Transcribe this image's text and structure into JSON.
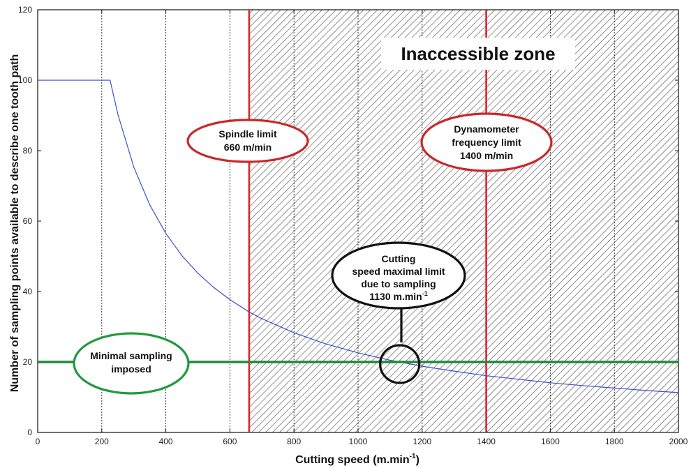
{
  "chart_data": {
    "type": "line",
    "xlabel_main": "Cutting speed (m.min",
    "xlabel_sup": "-1",
    "xlabel_end": ")",
    "ylabel": "Number of sampling points available to describe one tooth path",
    "xlim": [
      0,
      2000
    ],
    "ylim": [
      0,
      120
    ],
    "x_ticks": [
      0,
      200,
      400,
      600,
      800,
      1000,
      1200,
      1400,
      1600,
      1800,
      2000
    ],
    "y_ticks": [
      0,
      20,
      40,
      60,
      80,
      100,
      120
    ],
    "grid_dotted_x": [
      200,
      400,
      600,
      800,
      1000,
      1200,
      1400,
      1600,
      1800
    ],
    "series": [
      {
        "color": "#3a4fd0",
        "kind": "sampling-curve",
        "plateau_value": 100,
        "plateau_end": 226,
        "points": [
          [
            0,
            100
          ],
          [
            226,
            100
          ],
          [
            250,
            90.4
          ],
          [
            300,
            75.3
          ],
          [
            350,
            64.6
          ],
          [
            400,
            56.5
          ],
          [
            450,
            50.2
          ],
          [
            500,
            45.2
          ],
          [
            550,
            41.1
          ],
          [
            600,
            37.7
          ],
          [
            660,
            34.2
          ],
          [
            700,
            32.3
          ],
          [
            800,
            28.3
          ],
          [
            900,
            25.1
          ],
          [
            1000,
            22.6
          ],
          [
            1100,
            20.5
          ],
          [
            1130,
            20.0
          ],
          [
            1200,
            18.8
          ],
          [
            1300,
            17.4
          ],
          [
            1400,
            16.1
          ],
          [
            1500,
            15.1
          ],
          [
            1600,
            14.1
          ],
          [
            1700,
            13.3
          ],
          [
            1800,
            12.6
          ],
          [
            1900,
            11.9
          ],
          [
            2000,
            11.3
          ]
        ]
      },
      {
        "color": "#1f8a3a",
        "kind": "minimal-sampling",
        "constant": 20
      }
    ],
    "vertical_limits": [
      {
        "x": 660,
        "color": "#e0242a"
      },
      {
        "x": 1400,
        "color": "#e0242a"
      }
    ],
    "hatched_zone": {
      "x_from": 660,
      "x_to": 2000,
      "label": "Inaccessible zone"
    },
    "annotations": [
      {
        "id": "spindle",
        "lines": [
          "Spindle limit",
          "660 m/min"
        ],
        "color": "#c8282a"
      },
      {
        "id": "dynamometer",
        "lines": [
          "Dynamometer",
          "frequency limit",
          "1400 m/min"
        ],
        "color": "#c8282a"
      },
      {
        "id": "cutting",
        "lines": [
          "Cutting",
          "speed maximal limit",
          "due to sampling"
        ],
        "last_main": "1130 m.min",
        "last_sup": "-1",
        "color": "#111111",
        "point": [
          1130,
          20
        ]
      },
      {
        "id": "minimal",
        "lines": [
          "Minimal sampling",
          "imposed"
        ],
        "color": "#1f9a3e"
      }
    ]
  }
}
